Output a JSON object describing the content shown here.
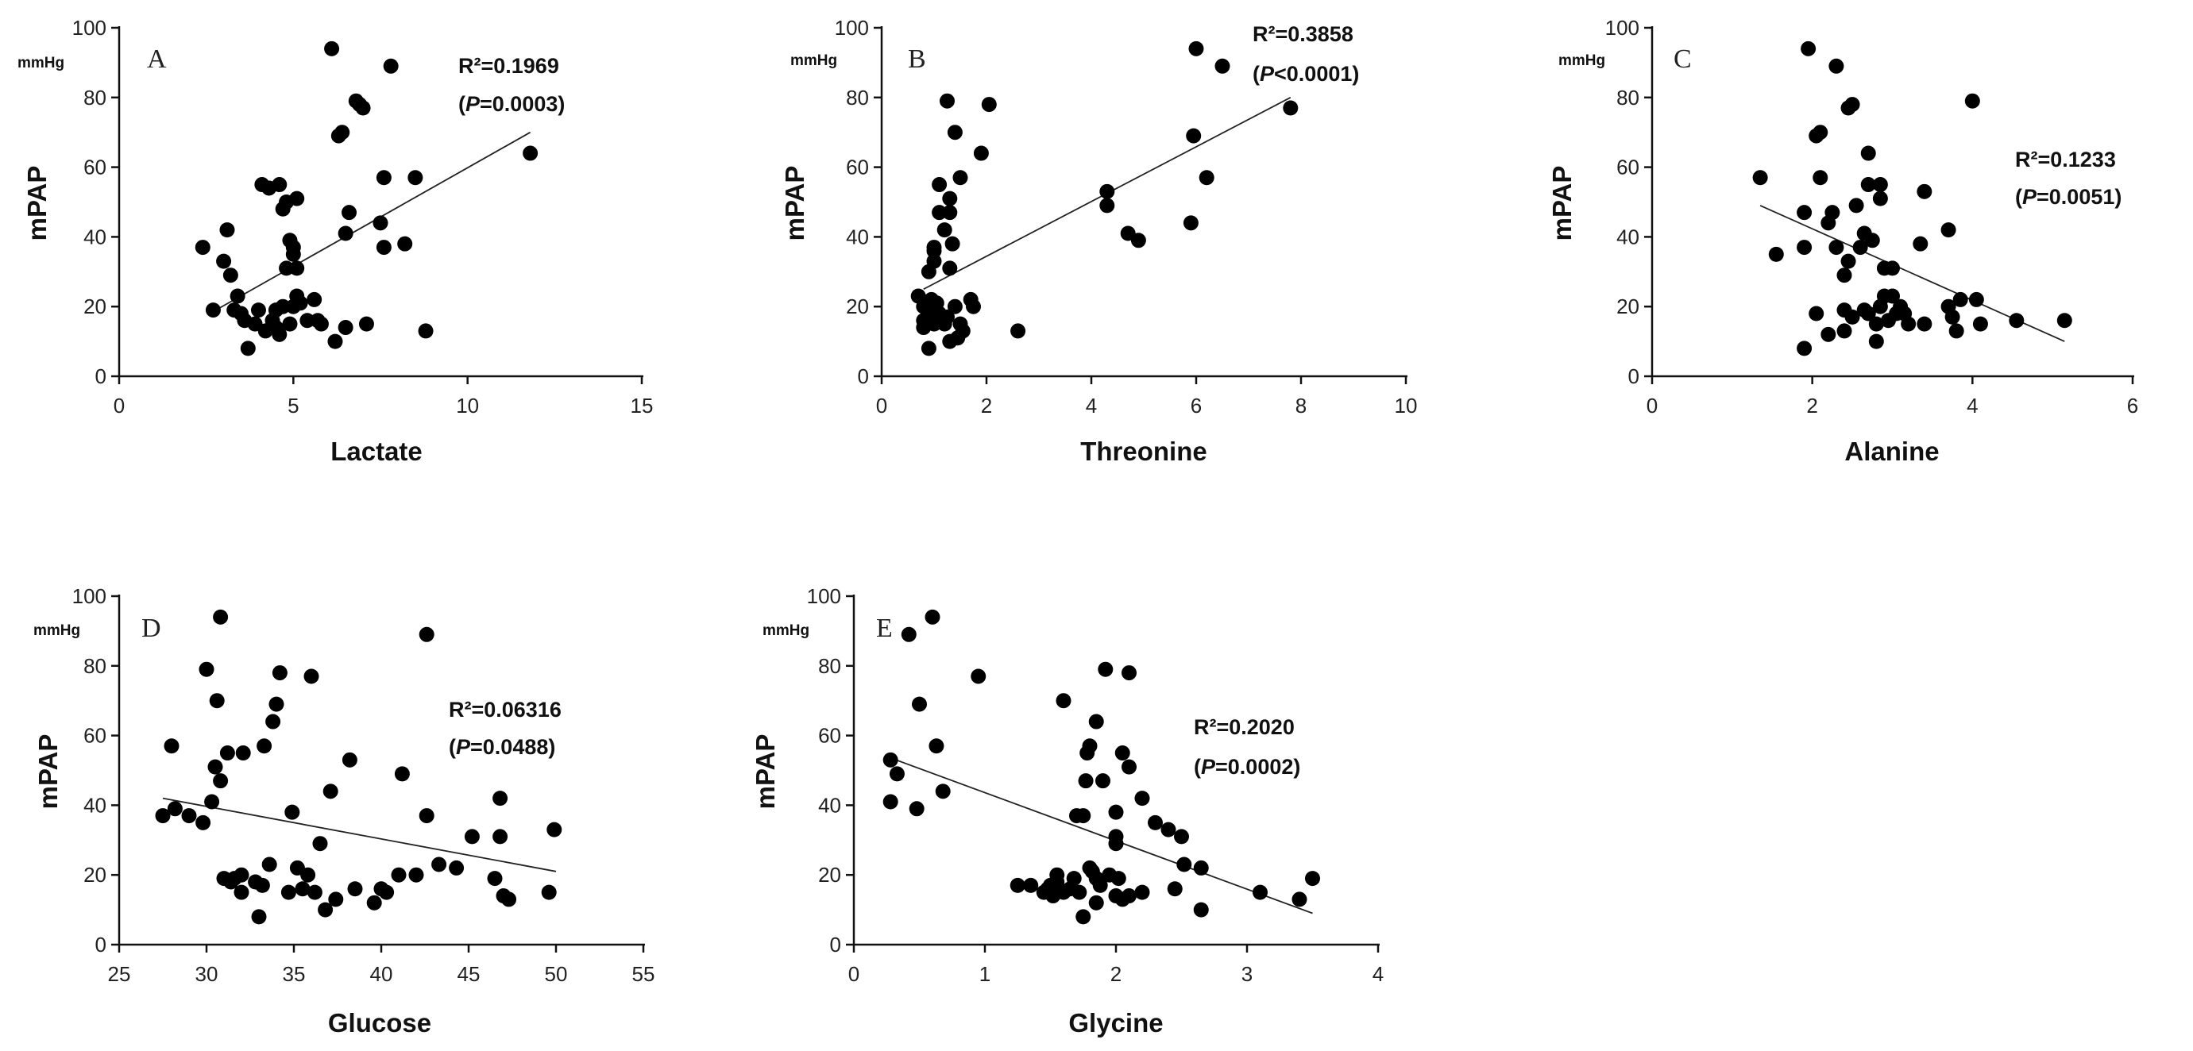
{
  "chart_data": [
    {
      "type": "scatter",
      "panel": "A",
      "xlabel": "Lactate",
      "ylabel": "mPAP",
      "y_unit": "mmHg",
      "xlim": [
        0,
        15
      ],
      "xticks": [
        0,
        5,
        10,
        15
      ],
      "ylim": [
        0,
        100
      ],
      "yticks": [
        0,
        20,
        40,
        60,
        80,
        100
      ],
      "r2_label": "R²=0.1969",
      "p_label": "(P=0.0003)",
      "fit": {
        "x": [
          2.6,
          11.8
        ],
        "y": [
          18,
          70
        ]
      },
      "points": [
        [
          2.4,
          37
        ],
        [
          2.7,
          19
        ],
        [
          3.0,
          33
        ],
        [
          3.1,
          42
        ],
        [
          3.2,
          29
        ],
        [
          3.3,
          19
        ],
        [
          3.4,
          23
        ],
        [
          3.5,
          18
        ],
        [
          3.6,
          16
        ],
        [
          3.7,
          8
        ],
        [
          3.9,
          15
        ],
        [
          4.0,
          19
        ],
        [
          4.1,
          55
        ],
        [
          4.2,
          13
        ],
        [
          4.3,
          54
        ],
        [
          4.4,
          16
        ],
        [
          4.5,
          19
        ],
        [
          4.5,
          14
        ],
        [
          4.6,
          55
        ],
        [
          4.6,
          12
        ],
        [
          4.7,
          20
        ],
        [
          4.7,
          48
        ],
        [
          4.8,
          31
        ],
        [
          4.8,
          50
        ],
        [
          4.9,
          15
        ],
        [
          4.9,
          39
        ],
        [
          5.0,
          20
        ],
        [
          5.0,
          37
        ],
        [
          5.0,
          35
        ],
        [
          5.1,
          51
        ],
        [
          5.1,
          23
        ],
        [
          5.1,
          31
        ],
        [
          5.2,
          21
        ],
        [
          5.4,
          16
        ],
        [
          5.6,
          22
        ],
        [
          5.7,
          16
        ],
        [
          5.8,
          15
        ],
        [
          6.1,
          94
        ],
        [
          6.2,
          10
        ],
        [
          6.3,
          69
        ],
        [
          6.4,
          70
        ],
        [
          6.5,
          14
        ],
        [
          6.5,
          41
        ],
        [
          6.6,
          47
        ],
        [
          6.8,
          79
        ],
        [
          6.9,
          78
        ],
        [
          7.0,
          77
        ],
        [
          7.1,
          15
        ],
        [
          7.5,
          44
        ],
        [
          7.6,
          37
        ],
        [
          7.6,
          57
        ],
        [
          7.8,
          89
        ],
        [
          8.2,
          38
        ],
        [
          8.5,
          57
        ],
        [
          8.8,
          13
        ],
        [
          11.8,
          64
        ]
      ]
    },
    {
      "type": "scatter",
      "panel": "B",
      "xlabel": "Threonine",
      "ylabel": "mPAP",
      "y_unit": "mmHg",
      "xlim": [
        0,
        10
      ],
      "xticks": [
        0,
        2,
        4,
        6,
        8,
        10
      ],
      "ylim": [
        0,
        100
      ],
      "yticks": [
        0,
        20,
        40,
        60,
        80,
        100
      ],
      "r2_label": "R²=0.3858",
      "p_label": "(P<0.0001)",
      "fit": {
        "x": [
          0.8,
          7.8
        ],
        "y": [
          25,
          80
        ]
      },
      "points": [
        [
          0.7,
          23
        ],
        [
          0.8,
          16
        ],
        [
          0.8,
          14
        ],
        [
          0.8,
          20
        ],
        [
          0.9,
          8
        ],
        [
          0.9,
          17
        ],
        [
          0.9,
          19
        ],
        [
          0.9,
          30
        ],
        [
          0.95,
          22
        ],
        [
          1.0,
          33
        ],
        [
          1.0,
          36
        ],
        [
          1.0,
          37
        ],
        [
          1.0,
          15
        ],
        [
          1.05,
          21
        ],
        [
          1.1,
          55
        ],
        [
          1.1,
          18
        ],
        [
          1.1,
          47
        ],
        [
          1.15,
          16
        ],
        [
          1.2,
          15
        ],
        [
          1.2,
          42
        ],
        [
          1.25,
          79
        ],
        [
          1.25,
          17
        ],
        [
          1.3,
          10
        ],
        [
          1.3,
          31
        ],
        [
          1.3,
          47
        ],
        [
          1.3,
          51
        ],
        [
          1.35,
          38
        ],
        [
          1.4,
          20
        ],
        [
          1.4,
          70
        ],
        [
          1.45,
          11
        ],
        [
          1.5,
          57
        ],
        [
          1.5,
          15
        ],
        [
          1.55,
          13
        ],
        [
          1.7,
          22
        ],
        [
          1.75,
          20
        ],
        [
          1.9,
          64
        ],
        [
          2.05,
          78
        ],
        [
          2.6,
          13
        ],
        [
          4.3,
          53
        ],
        [
          4.3,
          49
        ],
        [
          4.7,
          41
        ],
        [
          4.9,
          39
        ],
        [
          5.9,
          44
        ],
        [
          5.95,
          69
        ],
        [
          6.0,
          94
        ],
        [
          6.2,
          57
        ],
        [
          6.5,
          89
        ],
        [
          7.8,
          77
        ]
      ]
    },
    {
      "type": "scatter",
      "panel": "C",
      "xlabel": "Alanine",
      "ylabel": "mPAP",
      "y_unit": "mmHg",
      "xlim": [
        0,
        6
      ],
      "xticks": [
        0,
        2,
        4,
        6
      ],
      "ylim": [
        0,
        100
      ],
      "yticks": [
        0,
        20,
        40,
        60,
        80,
        100
      ],
      "r2_label": "R²=0.1233",
      "p_label": "(P=0.0051)",
      "fit": {
        "x": [
          1.35,
          5.15
        ],
        "y": [
          49,
          10
        ]
      },
      "points": [
        [
          1.35,
          57
        ],
        [
          1.55,
          35
        ],
        [
          1.9,
          8
        ],
        [
          1.9,
          37
        ],
        [
          1.9,
          47
        ],
        [
          1.95,
          94
        ],
        [
          2.05,
          18
        ],
        [
          2.05,
          69
        ],
        [
          2.1,
          57
        ],
        [
          2.1,
          70
        ],
        [
          2.2,
          44
        ],
        [
          2.2,
          12
        ],
        [
          2.25,
          47
        ],
        [
          2.3,
          37
        ],
        [
          2.3,
          89
        ],
        [
          2.4,
          19
        ],
        [
          2.4,
          13
        ],
        [
          2.4,
          29
        ],
        [
          2.45,
          33
        ],
        [
          2.45,
          77
        ],
        [
          2.5,
          78
        ],
        [
          2.5,
          17
        ],
        [
          2.55,
          49
        ],
        [
          2.6,
          37
        ],
        [
          2.65,
          41
        ],
        [
          2.65,
          19
        ],
        [
          2.7,
          18
        ],
        [
          2.7,
          64
        ],
        [
          2.7,
          55
        ],
        [
          2.75,
          39
        ],
        [
          2.8,
          15
        ],
        [
          2.8,
          10
        ],
        [
          2.85,
          55
        ],
        [
          2.85,
          51
        ],
        [
          2.85,
          20
        ],
        [
          2.9,
          23
        ],
        [
          2.9,
          31
        ],
        [
          2.95,
          16
        ],
        [
          3.0,
          31
        ],
        [
          3.0,
          23
        ],
        [
          3.05,
          18
        ],
        [
          3.1,
          20
        ],
        [
          3.15,
          18
        ],
        [
          3.2,
          15
        ],
        [
          3.35,
          38
        ],
        [
          3.4,
          53
        ],
        [
          3.4,
          15
        ],
        [
          3.7,
          20
        ],
        [
          3.7,
          42
        ],
        [
          3.75,
          17
        ],
        [
          3.8,
          13
        ],
        [
          3.85,
          22
        ],
        [
          4.0,
          79
        ],
        [
          4.05,
          22
        ],
        [
          4.1,
          15
        ],
        [
          4.55,
          16
        ],
        [
          5.15,
          16
        ]
      ]
    },
    {
      "type": "scatter",
      "panel": "D",
      "xlabel": "Glucose",
      "ylabel": "mPAP",
      "y_unit": "mmHg",
      "xlim": [
        25,
        55
      ],
      "xticks": [
        25,
        30,
        35,
        40,
        45,
        50,
        55
      ],
      "ylim": [
        0,
        100
      ],
      "yticks": [
        0,
        20,
        40,
        60,
        80,
        100
      ],
      "r2_label": "R²=0.06316",
      "p_label": "(P=0.0488)",
      "fit": {
        "x": [
          27.5,
          50
        ],
        "y": [
          42,
          21
        ]
      },
      "points": [
        [
          27.5,
          37
        ],
        [
          28,
          57
        ],
        [
          28.2,
          39
        ],
        [
          29,
          37
        ],
        [
          29.8,
          35
        ],
        [
          30,
          79
        ],
        [
          30.3,
          41
        ],
        [
          30.5,
          51
        ],
        [
          30.6,
          70
        ],
        [
          30.8,
          94
        ],
        [
          30.8,
          47
        ],
        [
          31,
          19
        ],
        [
          31.2,
          55
        ],
        [
          31.4,
          18
        ],
        [
          31.6,
          19
        ],
        [
          32,
          20
        ],
        [
          32,
          15
        ],
        [
          32.1,
          55
        ],
        [
          32.8,
          18
        ],
        [
          33,
          8
        ],
        [
          33.2,
          17
        ],
        [
          33.3,
          57
        ],
        [
          33.6,
          23
        ],
        [
          33.8,
          64
        ],
        [
          34,
          69
        ],
        [
          34.2,
          78
        ],
        [
          34.7,
          15
        ],
        [
          34.9,
          38
        ],
        [
          35.2,
          22
        ],
        [
          35.5,
          16
        ],
        [
          35.8,
          20
        ],
        [
          36,
          77
        ],
        [
          36.2,
          15
        ],
        [
          36.5,
          29
        ],
        [
          36.8,
          10
        ],
        [
          37.1,
          44
        ],
        [
          37.4,
          13
        ],
        [
          38.2,
          53
        ],
        [
          38.5,
          16
        ],
        [
          39.6,
          12
        ],
        [
          40,
          16
        ],
        [
          40.3,
          15
        ],
        [
          41,
          20
        ],
        [
          41.2,
          49
        ],
        [
          42,
          20
        ],
        [
          42.6,
          89
        ],
        [
          42.6,
          37
        ],
        [
          43.3,
          23
        ],
        [
          44.3,
          22
        ],
        [
          45.2,
          31
        ],
        [
          46.5,
          19
        ],
        [
          46.8,
          42
        ],
        [
          46.8,
          31
        ],
        [
          47,
          14
        ],
        [
          47.3,
          13
        ],
        [
          49.6,
          15
        ],
        [
          49.9,
          33
        ]
      ]
    },
    {
      "type": "scatter",
      "panel": "E",
      "xlabel": "Glycine",
      "ylabel": "mPAP",
      "y_unit": "mmHg",
      "xlim": [
        0,
        4
      ],
      "xticks": [
        0,
        1,
        2,
        3,
        4
      ],
      "ylim": [
        0,
        100
      ],
      "yticks": [
        0,
        20,
        40,
        60,
        80,
        100
      ],
      "r2_label": "R²=0.2020",
      "p_label": "(P=0.0002)",
      "fit": {
        "x": [
          0.25,
          3.5
        ],
        "y": [
          54,
          9
        ]
      },
      "points": [
        [
          0.28,
          41
        ],
        [
          0.28,
          53
        ],
        [
          0.33,
          49
        ],
        [
          0.42,
          89
        ],
        [
          0.48,
          39
        ],
        [
          0.5,
          69
        ],
        [
          0.6,
          94
        ],
        [
          0.63,
          57
        ],
        [
          0.68,
          44
        ],
        [
          0.95,
          77
        ],
        [
          1.25,
          17
        ],
        [
          1.35,
          17
        ],
        [
          1.45,
          15
        ],
        [
          1.48,
          16
        ],
        [
          1.5,
          17
        ],
        [
          1.52,
          14
        ],
        [
          1.55,
          20
        ],
        [
          1.55,
          18
        ],
        [
          1.6,
          15
        ],
        [
          1.6,
          70
        ],
        [
          1.65,
          16
        ],
        [
          1.68,
          19
        ],
        [
          1.7,
          37
        ],
        [
          1.72,
          15
        ],
        [
          1.75,
          8
        ],
        [
          1.75,
          37
        ],
        [
          1.77,
          47
        ],
        [
          1.78,
          55
        ],
        [
          1.8,
          22
        ],
        [
          1.8,
          57
        ],
        [
          1.82,
          21
        ],
        [
          1.85,
          19
        ],
        [
          1.85,
          64
        ],
        [
          1.85,
          12
        ],
        [
          1.88,
          17
        ],
        [
          1.9,
          47
        ],
        [
          1.92,
          79
        ],
        [
          1.95,
          20
        ],
        [
          2.0,
          38
        ],
        [
          2.0,
          14
        ],
        [
          2.0,
          29
        ],
        [
          2.0,
          31
        ],
        [
          2.02,
          19
        ],
        [
          2.05,
          13
        ],
        [
          2.05,
          55
        ],
        [
          2.1,
          78
        ],
        [
          2.1,
          51
        ],
        [
          2.1,
          14
        ],
        [
          2.2,
          15
        ],
        [
          2.2,
          42
        ],
        [
          2.3,
          35
        ],
        [
          2.4,
          33
        ],
        [
          2.45,
          16
        ],
        [
          2.5,
          31
        ],
        [
          2.52,
          23
        ],
        [
          2.65,
          22
        ],
        [
          2.65,
          10
        ],
        [
          3.1,
          15
        ],
        [
          3.4,
          13
        ],
        [
          3.5,
          19
        ]
      ]
    }
  ]
}
